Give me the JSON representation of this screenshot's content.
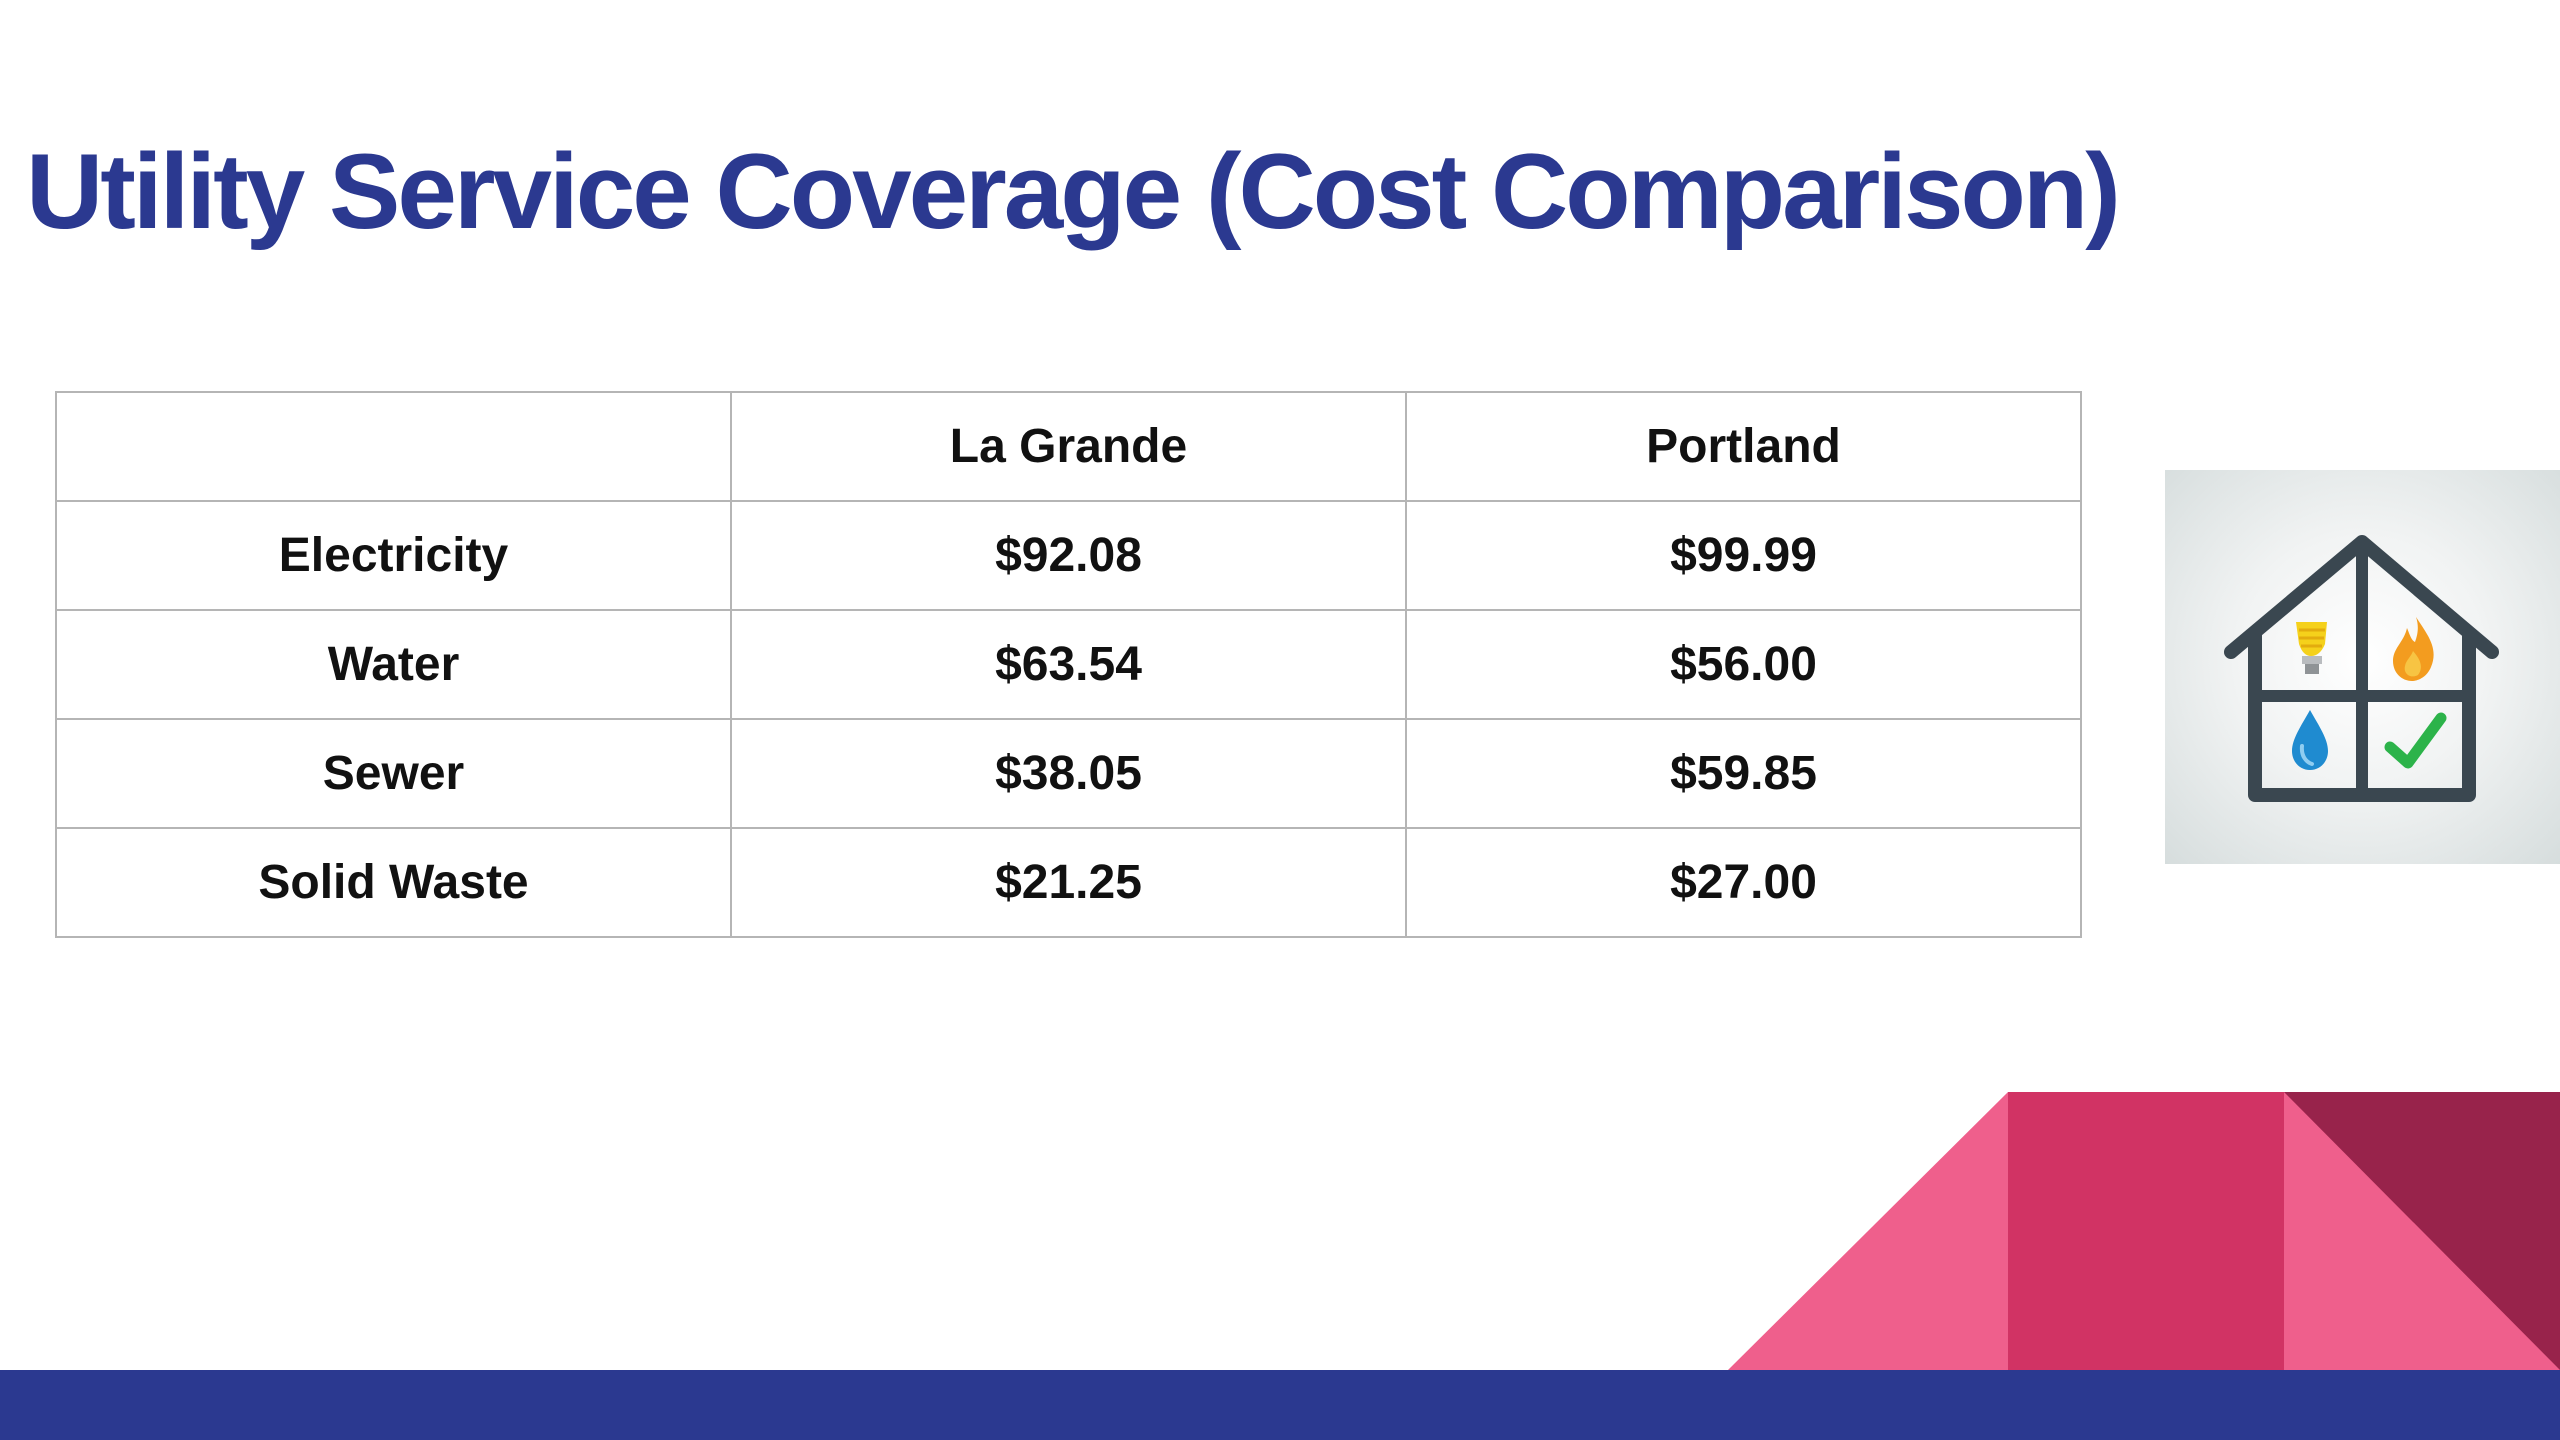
{
  "title": "Utility Service Coverage (Cost Comparison)",
  "table": {
    "corner_header": "",
    "columns": [
      "La Grande",
      "Portland"
    ],
    "rows": [
      {
        "label": "Electricity",
        "values": [
          "$92.08",
          "$99.99"
        ]
      },
      {
        "label": "Water",
        "values": [
          "$63.54",
          "$56.00"
        ]
      },
      {
        "label": "Sewer",
        "values": [
          "$38.05",
          "$59.85"
        ]
      },
      {
        "label": "Solid Waste",
        "values": [
          "$21.25",
          "$27.00"
        ]
      }
    ]
  },
  "icons": {
    "illustration": "house-utilities-icon",
    "cells": [
      "lightbulb-icon",
      "flame-icon",
      "water-drop-icon",
      "checkmark-icon"
    ]
  },
  "colors": {
    "title": "#2b3990",
    "footer_bar": "#2b3990",
    "pink_light": "#ef5f8c",
    "pink_mid": "#d13364",
    "maroon": "#98234b"
  }
}
